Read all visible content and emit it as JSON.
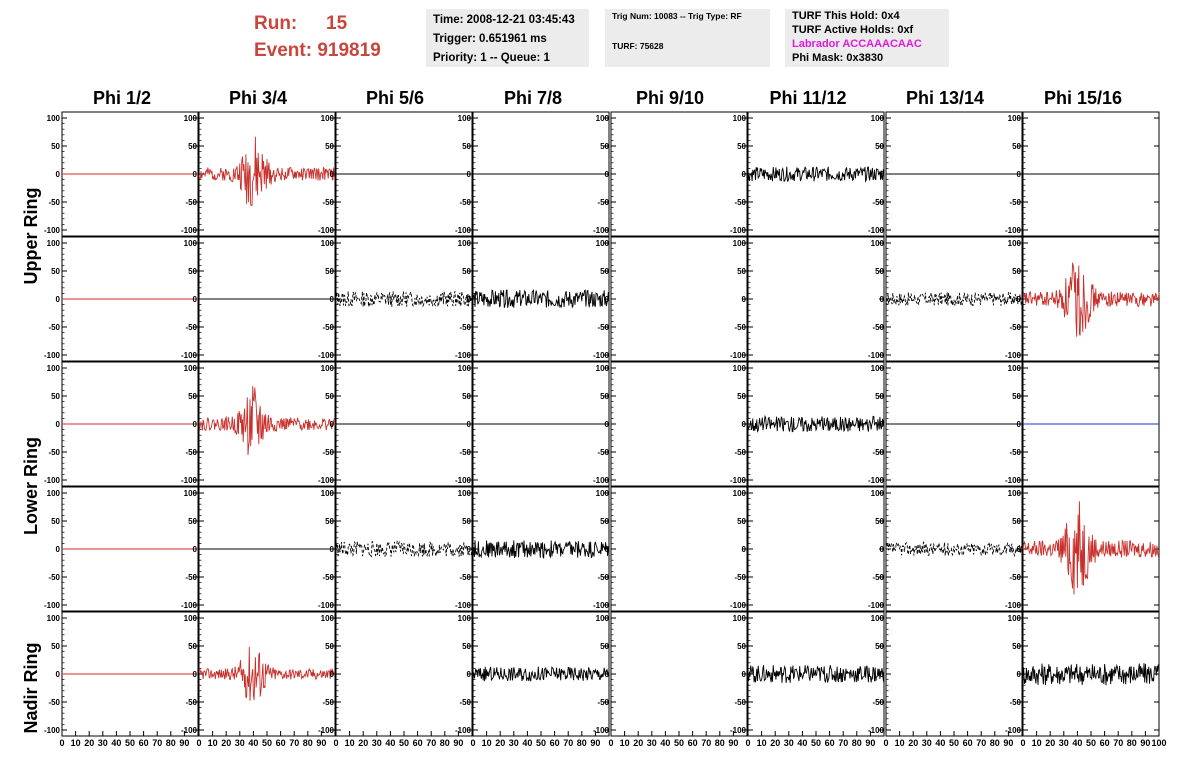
{
  "header": {
    "run_label": "Run:",
    "run_value": "15",
    "event_label": "Event:",
    "event_value": "919819",
    "time": "Time: 2008-12-21 03:45:43",
    "trigger": "Trigger: 0.651961 ms",
    "priority": "Priority: 1 -- Queue: 1",
    "trig_num": "Trig Num: 10083 -- Trig Type: RF",
    "turf": "TURF: 75628",
    "turf_this_hold": "TURF This Hold: 0x4",
    "turf_active_holds": "TURF Active Holds: 0xf",
    "labrador": "Labrador ACCAAACAAC",
    "phi_mask": "Phi Mask: 0x3830"
  },
  "colors": {
    "red": "#c9302c",
    "black": "#000000",
    "blue": "#2233cc",
    "accent_text": "#c9463d",
    "magenta": "#e01ae0"
  },
  "phi_labels": [
    "Phi 1/2",
    "Phi 3/4",
    "Phi 5/6",
    "Phi 7/8",
    "Phi 9/10",
    "Phi 11/12",
    "Phi 13/14",
    "Phi 15/16"
  ],
  "ring_labels": [
    "Upper Ring",
    "Lower Ring",
    "Nadir Ring"
  ],
  "chart_data": {
    "type": "line",
    "grid": false,
    "x_range": [
      0,
      100
    ],
    "y_range": [
      -100,
      100
    ],
    "y_ticks": [
      100,
      50,
      0,
      -50,
      -100
    ],
    "x_ticks": [
      0,
      10,
      20,
      30,
      40,
      50,
      60,
      70,
      80,
      90,
      100
    ],
    "panels": [
      [
        {
          "color": "red",
          "style": "flat",
          "amp": 0,
          "seed": 1
        },
        {
          "color": "red",
          "style": "pulse",
          "amp": 26,
          "seed": 2
        },
        {
          "color": "black",
          "style": "flat",
          "amp": 0,
          "seed": 3
        },
        {
          "color": "black",
          "style": "flat",
          "amp": 0,
          "seed": 4
        },
        {
          "color": "black",
          "style": "none",
          "amp": 0,
          "seed": 5
        },
        {
          "color": "black",
          "style": "noise",
          "amp": 13,
          "seed": 6
        },
        {
          "color": "black",
          "style": "flat",
          "amp": 0,
          "seed": 7
        },
        {
          "color": "black",
          "style": "flat",
          "amp": 0,
          "seed": 8
        }
      ],
      [
        {
          "color": "red",
          "style": "flat",
          "amp": 0,
          "seed": 11
        },
        {
          "color": "black",
          "style": "flat",
          "amp": 0,
          "seed": 12
        },
        {
          "color": "black",
          "style": "dashed",
          "amp": 14,
          "seed": 13
        },
        {
          "color": "black",
          "style": "noise",
          "amp": 16,
          "seed": 14
        },
        {
          "color": "black",
          "style": "none",
          "amp": 0,
          "seed": 15
        },
        {
          "color": "black",
          "style": "none",
          "amp": 0,
          "seed": 16
        },
        {
          "color": "black",
          "style": "dashed",
          "amp": 12,
          "seed": 17
        },
        {
          "color": "red",
          "style": "pulse",
          "amp": 30,
          "seed": 18
        }
      ],
      [
        {
          "color": "red",
          "style": "flat",
          "amp": 0,
          "seed": 21
        },
        {
          "color": "red",
          "style": "pulse",
          "amp": 26,
          "seed": 22
        },
        {
          "color": "black",
          "style": "flat",
          "amp": 0,
          "seed": 23
        },
        {
          "color": "black",
          "style": "flat",
          "amp": 0,
          "seed": 24
        },
        {
          "color": "black",
          "style": "none",
          "amp": 0,
          "seed": 25
        },
        {
          "color": "black",
          "style": "noise",
          "amp": 14,
          "seed": 26
        },
        {
          "color": "black",
          "style": "flat",
          "amp": 0,
          "seed": 27
        },
        {
          "color": "blue",
          "style": "flat",
          "amp": 0,
          "seed": 28
        }
      ],
      [
        {
          "color": "red",
          "style": "flat",
          "amp": 0,
          "seed": 31
        },
        {
          "color": "black",
          "style": "flat",
          "amp": 0,
          "seed": 32
        },
        {
          "color": "black",
          "style": "dashed",
          "amp": 14,
          "seed": 33
        },
        {
          "color": "black",
          "style": "noise",
          "amp": 16,
          "seed": 34
        },
        {
          "color": "black",
          "style": "none",
          "amp": 0,
          "seed": 35
        },
        {
          "color": "black",
          "style": "none",
          "amp": 0,
          "seed": 36
        },
        {
          "color": "black",
          "style": "dashed",
          "amp": 12,
          "seed": 37
        },
        {
          "color": "red",
          "style": "pulse",
          "amp": 34,
          "seed": 38
        }
      ],
      [
        {
          "color": "red",
          "style": "flat",
          "amp": 0,
          "seed": 41
        },
        {
          "color": "red",
          "style": "pulse",
          "amp": 22,
          "seed": 42
        },
        {
          "color": "black",
          "style": "none",
          "amp": 0,
          "seed": 43
        },
        {
          "color": "black",
          "style": "noise",
          "amp": 13,
          "seed": 44
        },
        {
          "color": "black",
          "style": "none",
          "amp": 0,
          "seed": 45
        },
        {
          "color": "black",
          "style": "noise",
          "amp": 16,
          "seed": 46
        },
        {
          "color": "black",
          "style": "none",
          "amp": 0,
          "seed": 47
        },
        {
          "color": "black",
          "style": "noise",
          "amp": 20,
          "seed": 48
        }
      ]
    ]
  }
}
